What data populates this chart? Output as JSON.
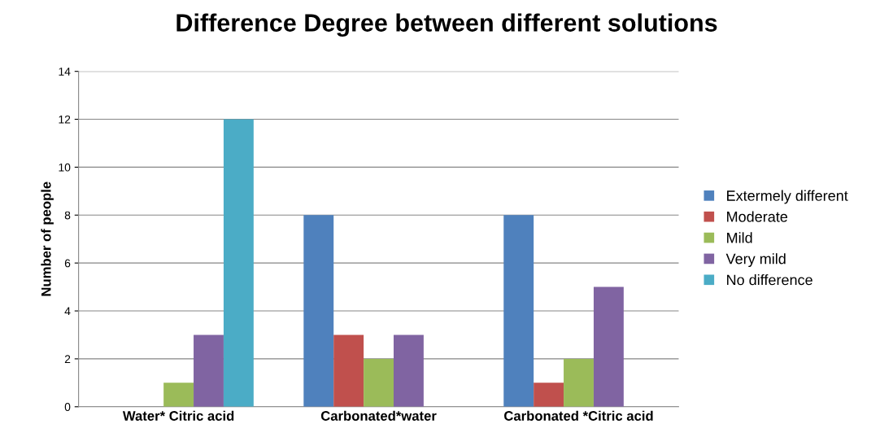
{
  "chart_data": {
    "type": "bar",
    "title": "Difference Degree between different solutions",
    "ylabel": "Number of people",
    "categories": [
      "Water* Citric acid",
      "Carbonated*water",
      "Carbonated *Citric acid"
    ],
    "series": [
      {
        "name": "Extermely different",
        "color": "#4f81bd",
        "values": [
          0,
          8,
          8
        ]
      },
      {
        "name": "Moderate",
        "color": "#c0504d",
        "values": [
          0,
          3,
          1
        ]
      },
      {
        "name": "Mild",
        "color": "#9bbb59",
        "values": [
          1,
          2,
          2
        ]
      },
      {
        "name": "Very mild",
        "color": "#8064a2",
        "values": [
          3,
          3,
          5
        ]
      },
      {
        "name": "No difference",
        "color": "#4bacc6",
        "values": [
          12,
          0,
          0
        ]
      }
    ],
    "ylim": [
      0,
      14
    ],
    "yticks": [
      0,
      2,
      4,
      6,
      8,
      10,
      12,
      14
    ],
    "grid": "y",
    "legend": "right"
  }
}
